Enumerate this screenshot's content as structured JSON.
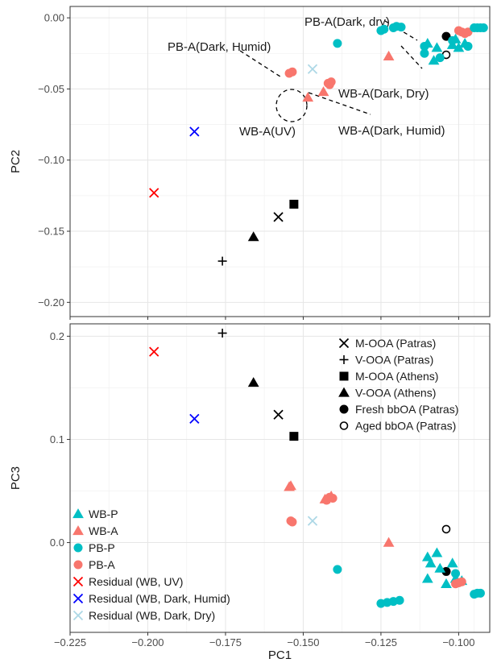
{
  "chart_data": {
    "colors": {
      "WB-P": "#00BFC4",
      "WB-A": "#F8766D",
      "PB-P": "#00BFC4",
      "PB-A": "#F8766D",
      "Residual (WB, UV)": "#ff0000",
      "Residual (WB, Dark, Humid)": "#0000ff",
      "Residual (WB, Dark, Dry)": "#add8e6",
      "black": "#000000"
    },
    "x_axis": {
      "label": "PC1",
      "range": [
        -0.225,
        -0.09
      ],
      "ticks": [
        -0.225,
        -0.2,
        -0.175,
        -0.15,
        -0.125,
        -0.1
      ],
      "tick_labels": [
        "−0.225",
        "−0.200",
        "−0.175",
        "−0.150",
        "−0.125",
        "−0.100"
      ]
    },
    "panels": [
      {
        "id": "pc2",
        "type": "scatter",
        "ylabel": "PC2",
        "ylim": [
          -0.21,
          0.008
        ],
        "yticks": [
          0.0,
          -0.05,
          -0.1,
          -0.15,
          -0.2
        ],
        "ytick_labels": [
          "0.00",
          "−0.05",
          "−0.10",
          "−0.15",
          "−0.20"
        ],
        "grid": true,
        "points": [
          {
            "series": "Residual (WB, UV)",
            "marker": "x",
            "x": -0.198,
            "y": -0.123
          },
          {
            "series": "Residual (WB, Dark, Humid)",
            "marker": "x",
            "x": -0.185,
            "y": -0.08
          },
          {
            "series": "Residual (WB, Dark, Dry)",
            "marker": "x",
            "x": -0.147,
            "y": -0.036
          },
          {
            "series": "M-OOA (Patras)",
            "marker": "x",
            "x": -0.158,
            "y": -0.14
          },
          {
            "series": "V-OOA (Patras)",
            "marker": "plus",
            "x": -0.176,
            "y": -0.171
          },
          {
            "series": "M-OOA (Athens)",
            "marker": "square",
            "x": -0.153,
            "y": -0.131
          },
          {
            "series": "V-OOA (Athens)",
            "marker": "triangle",
            "x": -0.166,
            "y": -0.154
          },
          {
            "series": "Fresh bbOA (Patras)",
            "marker": "circle",
            "x": -0.104,
            "y": -0.013
          },
          {
            "series": "Aged bbOA (Patras)",
            "marker": "circle-open",
            "x": -0.104,
            "y": -0.026
          },
          {
            "series": "PB-A",
            "marker": "circle",
            "x": -0.1535,
            "y": -0.038
          },
          {
            "series": "PB-A",
            "marker": "circle",
            "x": -0.1545,
            "y": -0.039
          },
          {
            "series": "WB-A",
            "marker": "triangle",
            "x": -0.1485,
            "y": -0.056
          },
          {
            "series": "WB-A",
            "marker": "triangle",
            "x": -0.1435,
            "y": -0.052
          },
          {
            "series": "PB-A",
            "marker": "circle",
            "x": -0.142,
            "y": -0.046
          },
          {
            "series": "PB-A",
            "marker": "circle",
            "x": -0.141,
            "y": -0.045
          },
          {
            "series": "PB-A",
            "marker": "circle",
            "x": -0.1415,
            "y": -0.047
          },
          {
            "series": "PB-P",
            "marker": "circle",
            "x": -0.139,
            "y": -0.018
          },
          {
            "series": "WB-A",
            "marker": "triangle",
            "x": -0.1225,
            "y": -0.027
          },
          {
            "series": "PB-P",
            "marker": "circle",
            "x": -0.125,
            "y": -0.009
          },
          {
            "series": "PB-P",
            "marker": "circle",
            "x": -0.124,
            "y": -0.008
          },
          {
            "series": "PB-P",
            "marker": "circle",
            "x": -0.121,
            "y": -0.007
          },
          {
            "series": "PB-P",
            "marker": "circle",
            "x": -0.12,
            "y": -0.006
          },
          {
            "series": "PB-P",
            "marker": "circle",
            "x": -0.1185,
            "y": -0.0065
          },
          {
            "series": "PB-P",
            "marker": "circle",
            "x": -0.111,
            "y": -0.02
          },
          {
            "series": "PB-P",
            "marker": "circle",
            "x": -0.111,
            "y": -0.025
          },
          {
            "series": "WB-P",
            "marker": "triangle",
            "x": -0.11,
            "y": -0.018
          },
          {
            "series": "WB-P",
            "marker": "triangle",
            "x": -0.108,
            "y": -0.03
          },
          {
            "series": "WB-P",
            "marker": "triangle",
            "x": -0.107,
            "y": -0.021
          },
          {
            "series": "PB-P",
            "marker": "circle",
            "x": -0.106,
            "y": -0.028
          },
          {
            "series": "WB-P",
            "marker": "triangle",
            "x": -0.102,
            "y": -0.019
          },
          {
            "series": "WB-P",
            "marker": "triangle",
            "x": -0.101,
            "y": -0.015
          },
          {
            "series": "WB-P",
            "marker": "triangle",
            "x": -0.1,
            "y": -0.021
          },
          {
            "series": "WB-P",
            "marker": "triangle",
            "x": -0.098,
            "y": -0.018
          },
          {
            "series": "PB-P",
            "marker": "circle",
            "x": -0.097,
            "y": -0.02
          },
          {
            "series": "PB-P",
            "marker": "circle",
            "x": -0.102,
            "y": -0.016
          },
          {
            "series": "PB-A",
            "marker": "circle",
            "x": -0.1,
            "y": -0.009
          },
          {
            "series": "PB-A",
            "marker": "circle",
            "x": -0.099,
            "y": -0.01
          },
          {
            "series": "PB-A",
            "marker": "circle",
            "x": -0.098,
            "y": -0.011
          },
          {
            "series": "PB-A",
            "marker": "circle",
            "x": -0.097,
            "y": -0.01
          },
          {
            "series": "PB-P",
            "marker": "circle",
            "x": -0.095,
            "y": -0.007
          },
          {
            "series": "PB-P",
            "marker": "circle",
            "x": -0.094,
            "y": -0.007
          },
          {
            "series": "PB-P",
            "marker": "circle",
            "x": -0.093,
            "y": -0.007
          },
          {
            "series": "PB-P",
            "marker": "circle",
            "x": -0.092,
            "y": -0.007
          }
        ],
        "annotations": [
          {
            "text": "PB-A(Dark, dry)"
          },
          {
            "text": "PB-A(Dark, Humid)"
          },
          {
            "text": "WB-A(Dark, Dry)"
          },
          {
            "text": "WB-A(UV)"
          },
          {
            "text": "WB-A(Dark, Humid)"
          }
        ]
      },
      {
        "id": "pc3",
        "type": "scatter",
        "ylabel": "PC3",
        "ylim": [
          -0.087,
          0.212
        ],
        "yticks": [
          0.2,
          0.1,
          0.0
        ],
        "ytick_labels": [
          "0.2",
          "0.1",
          "0.0"
        ],
        "grid": true,
        "points": [
          {
            "series": "Residual (WB, UV)",
            "marker": "x",
            "x": -0.198,
            "y": 0.185
          },
          {
            "series": "Residual (WB, Dark, Humid)",
            "marker": "x",
            "x": -0.185,
            "y": 0.12
          },
          {
            "series": "Residual (WB, Dark, Dry)",
            "marker": "x",
            "x": -0.147,
            "y": 0.021
          },
          {
            "series": "V-OOA (Patras)",
            "marker": "plus",
            "x": -0.176,
            "y": 0.203
          },
          {
            "series": "V-OOA (Athens)",
            "marker": "triangle",
            "x": -0.166,
            "y": 0.155
          },
          {
            "series": "M-OOA (Patras)",
            "marker": "x",
            "x": -0.158,
            "y": 0.124
          },
          {
            "series": "M-OOA (Athens)",
            "marker": "square",
            "x": -0.153,
            "y": 0.103
          },
          {
            "series": "Fresh bbOA (Patras)",
            "marker": "circle",
            "x": -0.104,
            "y": -0.028
          },
          {
            "series": "Aged bbOA (Patras)",
            "marker": "circle-open",
            "x": -0.104,
            "y": 0.013
          },
          {
            "series": "WB-A",
            "marker": "triangle",
            "x": -0.1545,
            "y": 0.054
          },
          {
            "series": "WB-A",
            "marker": "triangle",
            "x": -0.154,
            "y": 0.055
          },
          {
            "series": "PB-A",
            "marker": "circle",
            "x": -0.1535,
            "y": 0.02
          },
          {
            "series": "PB-A",
            "marker": "circle",
            "x": -0.154,
            "y": 0.021
          },
          {
            "series": "WB-A",
            "marker": "triangle",
            "x": -0.143,
            "y": 0.042
          },
          {
            "series": "PB-A",
            "marker": "circle",
            "x": -0.1425,
            "y": 0.041
          },
          {
            "series": "PB-A",
            "marker": "circle",
            "x": -0.1415,
            "y": 0.044
          },
          {
            "series": "PB-A",
            "marker": "circle",
            "x": -0.1405,
            "y": 0.043
          },
          {
            "series": "WB-A",
            "marker": "triangle",
            "x": -0.141,
            "y": 0.045
          },
          {
            "series": "PB-P",
            "marker": "circle",
            "x": -0.139,
            "y": -0.026
          },
          {
            "series": "WB-A",
            "marker": "triangle",
            "x": -0.1225,
            "y": 0.0
          },
          {
            "series": "PB-P",
            "marker": "circle",
            "x": -0.125,
            "y": -0.059
          },
          {
            "series": "PB-P",
            "marker": "circle",
            "x": -0.123,
            "y": -0.058
          },
          {
            "series": "PB-P",
            "marker": "circle",
            "x": -0.121,
            "y": -0.057
          },
          {
            "series": "PB-P",
            "marker": "circle",
            "x": -0.119,
            "y": -0.056
          },
          {
            "series": "WB-P",
            "marker": "triangle",
            "x": -0.11,
            "y": -0.014
          },
          {
            "series": "WB-P",
            "marker": "triangle",
            "x": -0.109,
            "y": -0.02
          },
          {
            "series": "WB-P",
            "marker": "triangle",
            "x": -0.11,
            "y": -0.035
          },
          {
            "series": "WB-P",
            "marker": "triangle",
            "x": -0.107,
            "y": -0.01
          },
          {
            "series": "WB-P",
            "marker": "triangle",
            "x": -0.106,
            "y": -0.025
          },
          {
            "series": "WB-P",
            "marker": "triangle",
            "x": -0.104,
            "y": -0.04
          },
          {
            "series": "WB-P",
            "marker": "triangle",
            "x": -0.102,
            "y": -0.02
          },
          {
            "series": "WB-P",
            "marker": "triangle",
            "x": -0.101,
            "y": -0.035
          },
          {
            "series": "WB-P",
            "marker": "triangle",
            "x": -0.099,
            "y": -0.037
          },
          {
            "series": "PB-P",
            "marker": "circle",
            "x": -0.101,
            "y": -0.03
          },
          {
            "series": "PB-A",
            "marker": "circle",
            "x": -0.101,
            "y": -0.04
          },
          {
            "series": "PB-A",
            "marker": "circle",
            "x": -0.1,
            "y": -0.039
          },
          {
            "series": "PB-A",
            "marker": "circle",
            "x": -0.099,
            "y": -0.038
          },
          {
            "series": "PB-P",
            "marker": "circle",
            "x": -0.095,
            "y": -0.05
          },
          {
            "series": "PB-P",
            "marker": "circle",
            "x": -0.094,
            "y": -0.049
          },
          {
            "series": "PB-P",
            "marker": "circle",
            "x": -0.093,
            "y": -0.049
          }
        ],
        "legend_top_right": [
          {
            "label": "M-OOA (Patras)",
            "marker": "x",
            "color": "#000000"
          },
          {
            "label": "V-OOA (Patras)",
            "marker": "plus",
            "color": "#000000"
          },
          {
            "label": "M-OOA (Athens)",
            "marker": "square",
            "color": "#000000"
          },
          {
            "label": "V-OOA (Athens)",
            "marker": "triangle",
            "color": "#000000"
          },
          {
            "label": "Fresh bbOA (Patras)",
            "marker": "circle",
            "color": "#000000"
          },
          {
            "label": "Aged bbOA (Patras)",
            "marker": "circle-open",
            "color": "#000000"
          }
        ],
        "legend_bottom_left": [
          {
            "label": "WB-P",
            "marker": "triangle",
            "color": "#00BFC4"
          },
          {
            "label": "WB-A",
            "marker": "triangle",
            "color": "#F8766D"
          },
          {
            "label": "PB-P",
            "marker": "circle",
            "color": "#00BFC4"
          },
          {
            "label": "PB-A",
            "marker": "circle",
            "color": "#F8766D"
          },
          {
            "label": "Residual (WB, UV)",
            "marker": "x",
            "color": "#ff0000"
          },
          {
            "label": "Residual (WB, Dark, Humid)",
            "marker": "x",
            "color": "#0000ff"
          },
          {
            "label": "Residual (WB, Dark, Dry)",
            "marker": "x",
            "color": "#add8e6"
          }
        ]
      }
    ]
  }
}
